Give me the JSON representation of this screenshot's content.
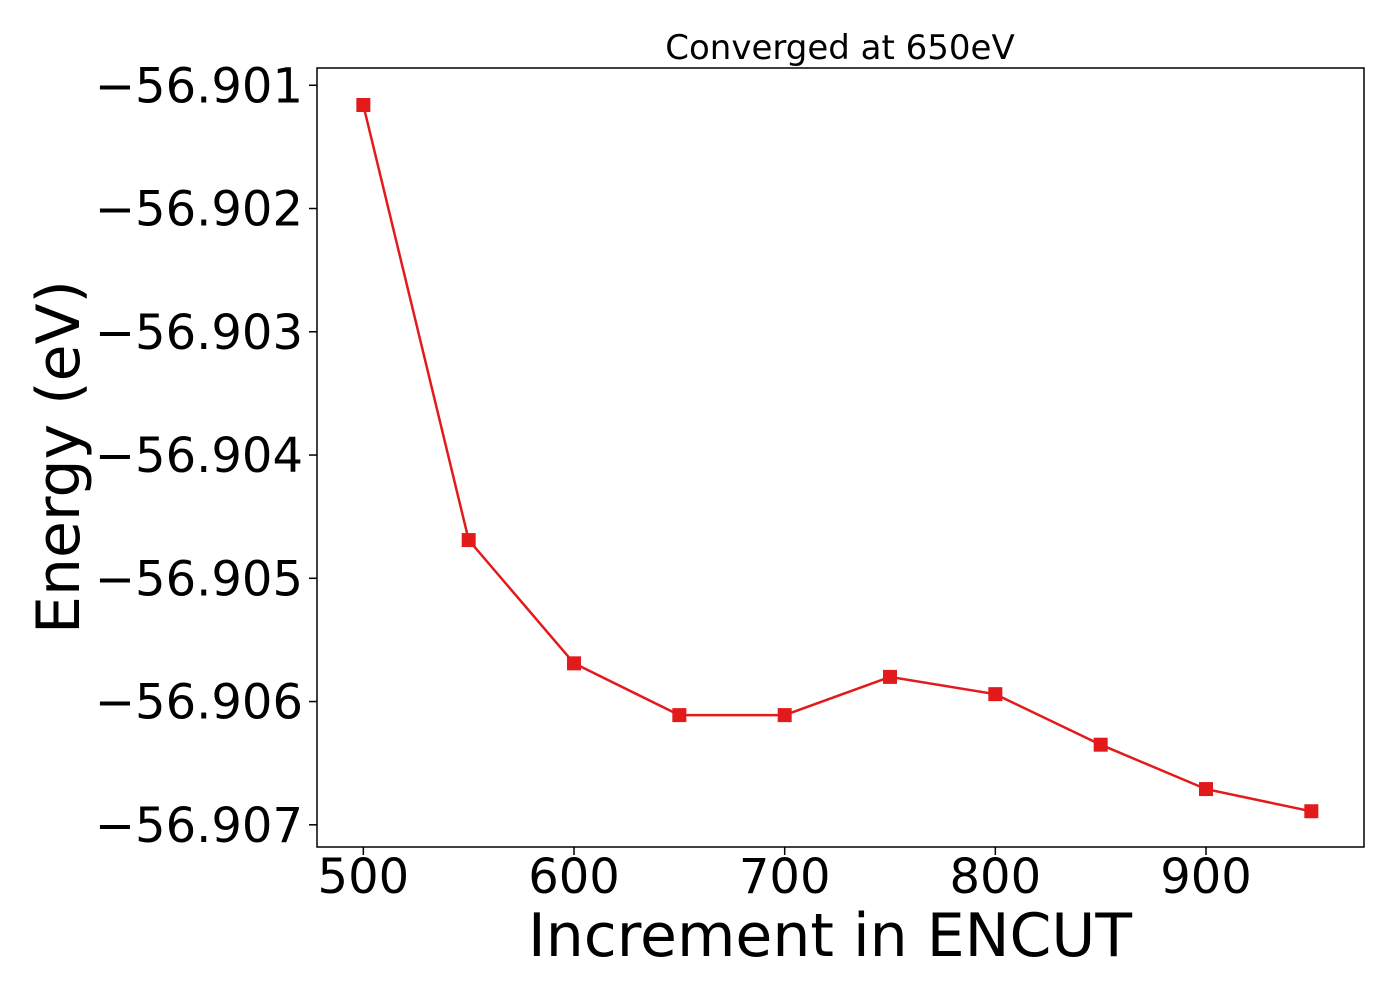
{
  "chart_data": {
    "type": "line",
    "title": "Converged at 650eV",
    "xlabel": "Increment in ENCUT",
    "ylabel": "Energy (eV)",
    "xlim": [
      478,
      975
    ],
    "ylim": [
      -56.90718,
      -56.90086
    ],
    "xticks": [
      500,
      600,
      700,
      800,
      900
    ],
    "xtick_labels": [
      "500",
      "600",
      "700",
      "800",
      "900"
    ],
    "yticks": [
      -56.901,
      -56.902,
      -56.903,
      -56.904,
      -56.905,
      -56.906,
      -56.907
    ],
    "ytick_labels": [
      "−56.901",
      "−56.902",
      "−56.903",
      "−56.904",
      "−56.905",
      "−56.906",
      "−56.907"
    ],
    "grid": false,
    "series": [
      {
        "color": "#e31a1c",
        "marker": "square",
        "x": [
          500,
          550,
          600,
          650,
          700,
          750,
          800,
          850,
          900,
          950
        ],
        "y": [
          -56.90116,
          -56.90469,
          -56.90569,
          -56.90611,
          -56.90611,
          -56.9058,
          -56.90594,
          -56.90635,
          -56.90671,
          -56.90689
        ]
      }
    ]
  }
}
